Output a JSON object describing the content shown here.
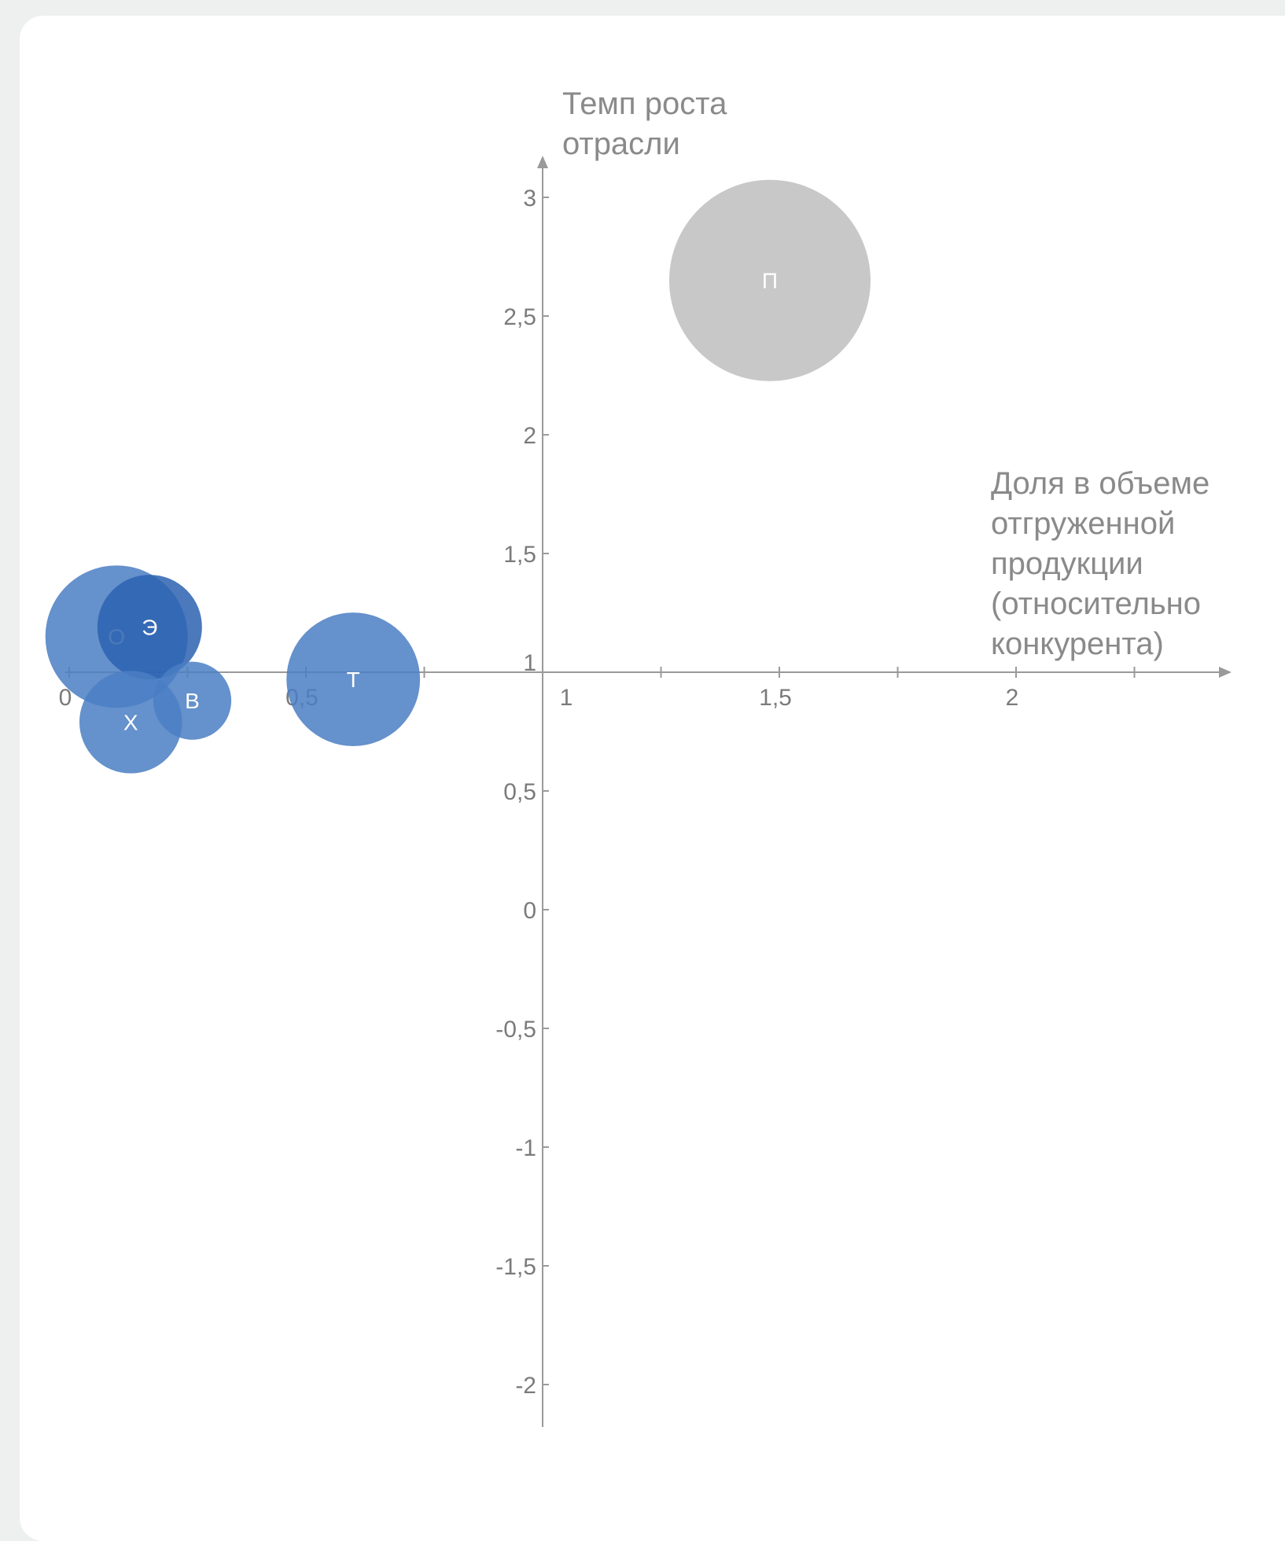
{
  "chart_data": {
    "type": "bubble",
    "title": "",
    "xlabel": [
      "Доля в объеме",
      "отгруженной",
      "продукции",
      "(относительно",
      "конкурента)"
    ],
    "ylabel": [
      "Темп роста",
      "отрасли"
    ],
    "xlim": [
      0,
      2.4
    ],
    "ylim": [
      -2.2,
      3.2
    ],
    "x_axis_crosses_y_at": 1,
    "y_axis_crosses_x_at": 1,
    "x_ticks": [
      0,
      0.25,
      0.5,
      0.75,
      1,
      1.25,
      1.5,
      1.75,
      2,
      2.25
    ],
    "x_tick_labels": [
      {
        "value": 0,
        "label": "0"
      },
      {
        "value": 0.5,
        "label": "0,5"
      },
      {
        "value": 1,
        "label": "1"
      },
      {
        "value": 1.5,
        "label": "1,5"
      },
      {
        "value": 2,
        "label": "2"
      }
    ],
    "y_ticks": [
      {
        "value": 3,
        "label": "3"
      },
      {
        "value": 2.5,
        "label": "2,5"
      },
      {
        "value": 2,
        "label": "2"
      },
      {
        "value": 1.5,
        "label": "1,5"
      },
      {
        "value": 1,
        "label": "1"
      },
      {
        "value": 0.5,
        "label": "0,5"
      },
      {
        "value": 0,
        "label": "0"
      },
      {
        "value": -0.5,
        "label": "-0,5"
      },
      {
        "value": -1,
        "label": "-1"
      },
      {
        "value": -1.5,
        "label": "-1,5"
      },
      {
        "value": -2,
        "label": "-2"
      }
    ],
    "bubbles": [
      {
        "label": "П",
        "x": 1.48,
        "y": 2.65,
        "size": 1.0,
        "color": "#c8c8c8",
        "opacity": 1
      },
      {
        "label": "О",
        "x": 0.1,
        "y": 1.15,
        "size": 0.5,
        "color": "#4a7ec3",
        "opacity": 0.85
      },
      {
        "label": "Э",
        "x": 0.17,
        "y": 1.19,
        "size": 0.27,
        "color": "#2b62b0",
        "opacity": 0.85
      },
      {
        "label": "Т",
        "x": 0.6,
        "y": 0.97,
        "size": 0.44,
        "color": "#4a7ec3",
        "opacity": 0.85
      },
      {
        "label": "В",
        "x": 0.26,
        "y": 0.88,
        "size": 0.15,
        "color": "#4a7ec3",
        "opacity": 0.85
      },
      {
        "label": "Х",
        "x": 0.13,
        "y": 0.79,
        "size": 0.26,
        "color": "#4a7ec3",
        "opacity": 0.85
      }
    ],
    "grid": false,
    "axis_color": "#9a9a9a"
  }
}
